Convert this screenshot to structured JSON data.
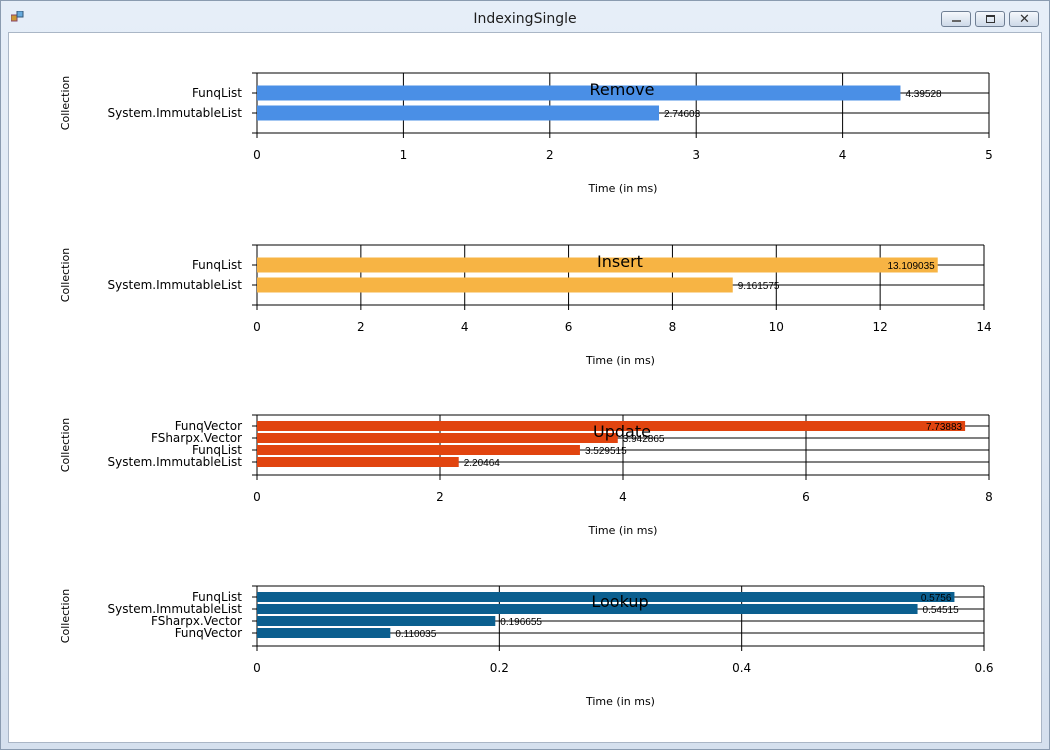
{
  "window": {
    "title": "IndexingSingle"
  },
  "chart_data": [
    {
      "type": "bar",
      "orientation": "horizontal",
      "title": "Remove",
      "xlabel": "Time (in ms)",
      "ylabel": "Collection",
      "xlim": [
        0,
        5
      ],
      "xticks": [
        "0",
        "1",
        "2",
        "3",
        "4",
        "5"
      ],
      "categories": [
        "FunqList",
        "System.ImmutableList"
      ],
      "values": [
        4.39528,
        2.74603
      ],
      "labels": [
        "4.39528",
        "2.74603"
      ],
      "color": "#4a8fe6",
      "grid": true
    },
    {
      "type": "bar",
      "orientation": "horizontal",
      "title": "Insert",
      "xlabel": "Time (in ms)",
      "ylabel": "Collection",
      "xlim": [
        0,
        14
      ],
      "xticks": [
        "0",
        "2",
        "4",
        "6",
        "8",
        "10",
        "12",
        "14"
      ],
      "categories": [
        "FunqList",
        "System.ImmutableList"
      ],
      "values": [
        13.109035,
        9.161575
      ],
      "labels": [
        "13.109035",
        "9.161575"
      ],
      "color": "#f7b444",
      "grid": true
    },
    {
      "type": "bar",
      "orientation": "horizontal",
      "title": "Update",
      "xlabel": "Time (in ms)",
      "ylabel": "Collection",
      "xlim": [
        0,
        8
      ],
      "xticks": [
        "0",
        "2",
        "4",
        "6",
        "8"
      ],
      "categories": [
        "FunqVector",
        "FSharpx.Vector",
        "FunqList",
        "System.ImmutableList"
      ],
      "values": [
        7.73883,
        3.942865,
        3.529515,
        2.20464
      ],
      "labels": [
        "7.73883",
        "3.942865",
        "3.529515",
        "2.20464"
      ],
      "color": "#e1440f",
      "grid": true
    },
    {
      "type": "bar",
      "orientation": "horizontal",
      "title": "Lookup",
      "xlabel": "Time (in ms)",
      "ylabel": "Collection",
      "xlim": [
        0,
        0.6
      ],
      "xticks": [
        "0",
        "0.2",
        "0.4",
        "0.6"
      ],
      "categories": [
        "FunqList",
        "System.ImmutableList",
        "FSharpx.Vector",
        "FunqVector"
      ],
      "values": [
        0.5756,
        0.54515,
        0.196655,
        0.110035
      ],
      "labels": [
        "0.5756",
        "0.54515",
        "0.196655",
        "0.110035"
      ],
      "color": "#0b5f8f",
      "grid": true
    }
  ]
}
